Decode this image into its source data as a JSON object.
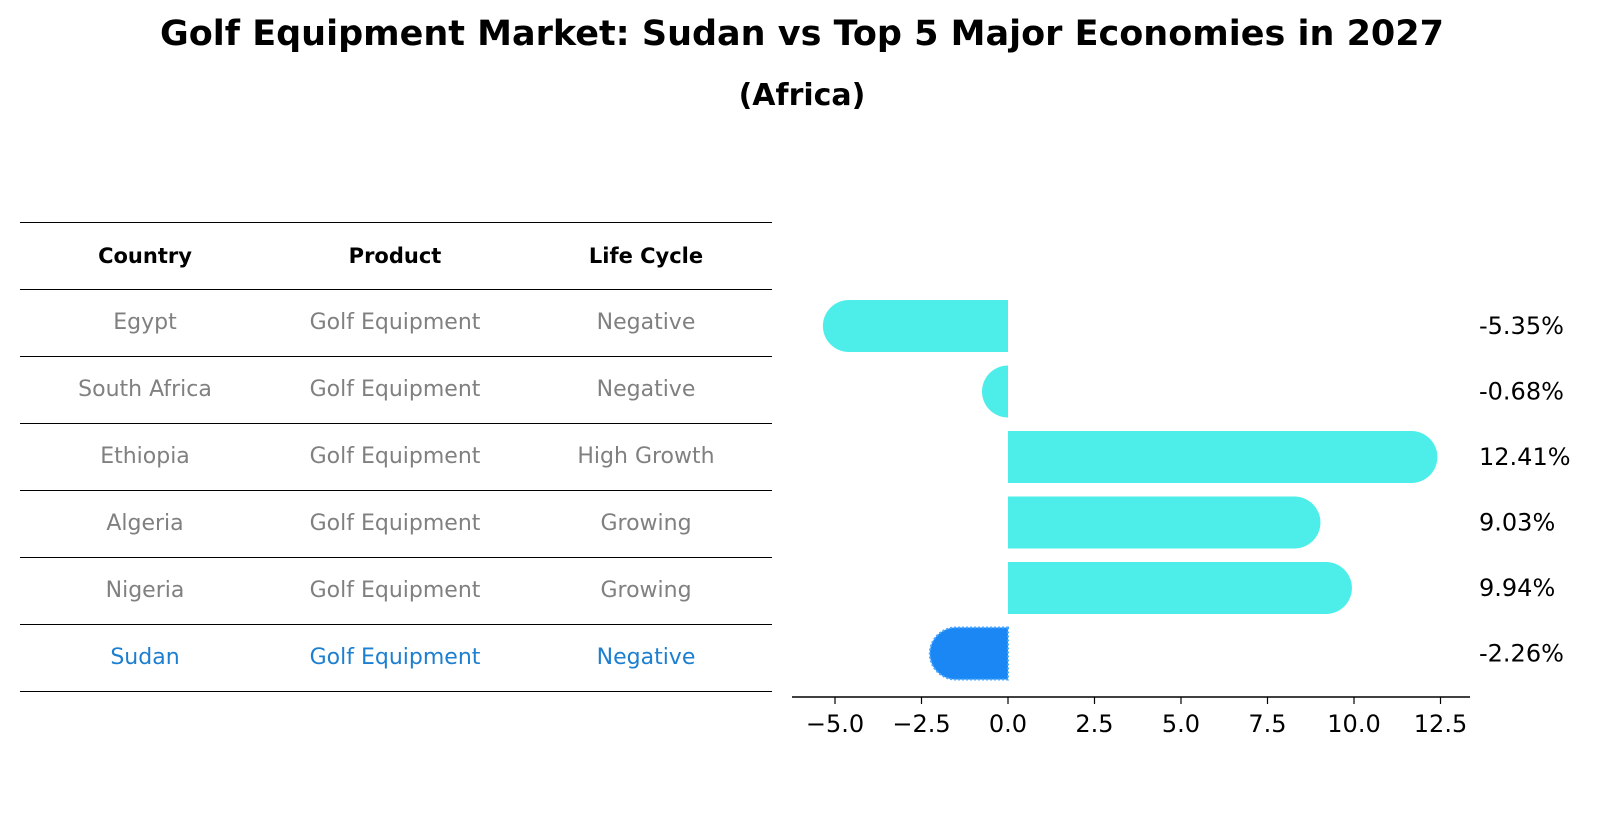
{
  "title": "Golf Equipment Market: Sudan vs Top 5 Major Economies in 2027",
  "subtitle": "(Africa)",
  "table": {
    "headers": [
      "Country",
      "Product",
      "Life Cycle"
    ],
    "rows": [
      {
        "country": "Egypt",
        "product": "Golf Equipment",
        "life_cycle": "Negative"
      },
      {
        "country": "South Africa",
        "product": "Golf Equipment",
        "life_cycle": "Negative"
      },
      {
        "country": "Ethiopia",
        "product": "Golf Equipment",
        "life_cycle": "High Growth"
      },
      {
        "country": "Algeria",
        "product": "Golf Equipment",
        "life_cycle": "Growing"
      },
      {
        "country": "Nigeria",
        "product": "Golf Equipment",
        "life_cycle": "Growing"
      },
      {
        "country": "Sudan",
        "product": "Golf Equipment",
        "life_cycle": "Negative"
      }
    ],
    "highlight_row": 5,
    "colors": {
      "normal_text": "#808080",
      "highlight_text": "#1d7fd0"
    }
  },
  "chart_data": {
    "type": "bar",
    "orientation": "horizontal",
    "categories": [
      "Egypt",
      "South Africa",
      "Ethiopia",
      "Algeria",
      "Nigeria",
      "Sudan"
    ],
    "values": [
      -5.35,
      -0.68,
      12.41,
      9.03,
      9.94,
      -2.26
    ],
    "data_labels": [
      "-5.35%",
      "-0.68%",
      "12.41%",
      "9.03%",
      "9.94%",
      "-2.26%"
    ],
    "xticks": [
      -5.0,
      -2.5,
      0.0,
      2.5,
      5.0,
      7.5,
      10.0,
      12.5
    ],
    "xtick_labels": [
      "−5.0",
      "−2.5",
      "0.0",
      "2.5",
      "5.0",
      "7.5",
      "10.0",
      "12.5"
    ],
    "xlim": [
      -6.3,
      13.3
    ],
    "xlabel": "",
    "ylabel": "",
    "grid": false,
    "highlight_index": 5,
    "colors": {
      "bar": "#4deeea",
      "highlight": "#1b87f5"
    }
  }
}
